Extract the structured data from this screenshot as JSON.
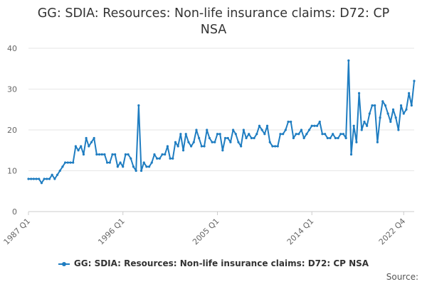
{
  "chart_data": {
    "type": "line",
    "title_line1": "GG: SDIA: Resources: Non-life insurance claims: D72: CP",
    "title_line2": "NSA",
    "xlabel": "",
    "ylabel": "",
    "ylim": [
      0,
      40
    ],
    "yticks": [
      0,
      10,
      20,
      30,
      40
    ],
    "xtick_labels": [
      "1987 Q1",
      "1996 Q1",
      "2005 Q1",
      "2014 Q1",
      "2022 Q4"
    ],
    "grid": true,
    "legend_position": "bottom",
    "x_start": "1987 Q1",
    "x_end": "2022 Q4",
    "series": [
      {
        "name": "GG: SDIA: Resources: Non-life insurance claims: D72: CP NSA",
        "color": "#1f7dc1",
        "values": [
          8,
          8,
          8,
          8,
          8,
          7,
          8,
          8,
          8,
          9,
          8,
          9,
          10,
          11,
          12,
          12,
          12,
          12,
          16,
          15,
          16,
          14,
          18,
          16,
          17,
          18,
          14,
          14,
          14,
          14,
          12,
          12,
          14,
          14,
          11,
          12,
          11,
          14,
          14,
          13,
          11,
          10,
          26,
          10,
          12,
          11,
          11,
          12,
          14,
          13,
          13,
          14,
          14,
          16,
          13,
          13,
          17,
          16,
          19,
          15,
          19,
          17,
          16,
          17,
          20,
          18,
          16,
          16,
          20,
          18,
          17,
          17,
          19,
          19,
          15,
          18,
          18,
          17,
          20,
          19,
          17,
          16,
          20,
          18,
          19,
          18,
          18,
          19,
          21,
          20,
          19,
          21,
          17,
          16,
          16,
          16,
          19,
          19,
          20,
          22,
          22,
          18,
          19,
          19,
          20,
          18,
          19,
          20,
          21,
          21,
          21,
          22,
          19,
          19,
          18,
          18,
          19,
          18,
          18,
          19,
          19,
          18,
          37,
          14,
          21,
          17,
          29,
          20,
          22,
          21,
          24,
          26,
          26,
          17,
          23,
          27,
          26,
          24,
          22,
          25,
          23,
          20,
          26,
          24,
          25,
          29,
          26,
          32
        ]
      }
    ]
  },
  "source_label": "Source:"
}
